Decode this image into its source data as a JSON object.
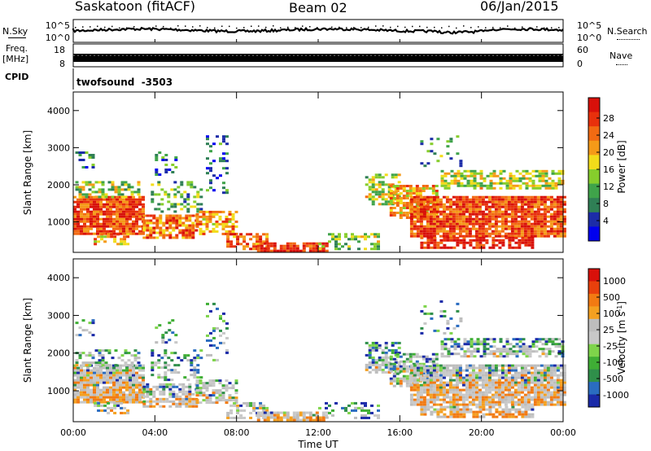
{
  "header": {
    "station": "Saskatoon (fitACF)",
    "beam": "Beam 02",
    "date": "06/Jan/2015"
  },
  "panels": {
    "nsky_label": "N.Sky",
    "nsearch_label": "N.Search",
    "freq_label_1": "Freq.",
    "freq_label_2": "[MHz]",
    "nave_label": "Nave",
    "cpid_label": "CPID",
    "cpid_value": "twofsound  -3503",
    "nsky_ticks": [
      "10^5",
      "10^0"
    ],
    "nsearch_ticks": [
      "10^5",
      "10^0"
    ],
    "freq_ticks": [
      "18",
      "8"
    ],
    "nave_ticks": [
      "60",
      "0"
    ]
  },
  "colors": {
    "power": [
      "#0000ee",
      "#1c2ca8",
      "#2f7f55",
      "#3fa34a",
      "#86cd2c",
      "#f2dc1a",
      "#f59a18",
      "#f26a12",
      "#e8300c",
      "#d8100a"
    ],
    "velocity": [
      "#1a2aa8",
      "#2a6cc0",
      "#2f8f4a",
      "#3fae35",
      "#7ed44a",
      "#c8c8c8",
      "#bdbdbd",
      "#f4a020",
      "#f27a12",
      "#e8400c",
      "#d8100a"
    ]
  },
  "chart_data": [
    {
      "type": "heatmap",
      "name": "power",
      "ylabel": "Slant Range [km]",
      "xlabel": "",
      "ylim": [
        180,
        4500
      ],
      "yticks": [
        1000,
        2000,
        3000,
        4000
      ],
      "xticks": [
        "00:00",
        "04:00",
        "08:00",
        "12:00",
        "16:00",
        "20:00",
        "00:00"
      ],
      "colorbar_label": "Power [dB]",
      "colorbar_ticks": [
        "28",
        "24",
        "20",
        "16",
        "12",
        "8",
        "4"
      ],
      "colorbar_range": [
        0,
        32
      ]
    },
    {
      "type": "heatmap",
      "name": "velocity",
      "ylabel": "Slant Range [km]",
      "xlabel": "Time UT",
      "ylim": [
        180,
        4500
      ],
      "yticks": [
        1000,
        2000,
        3000,
        4000
      ],
      "xticks": [
        "00:00",
        "04:00",
        "08:00",
        "12:00",
        "16:00",
        "20:00",
        "00:00"
      ],
      "colorbar_label": "Velocity [m s^-1]",
      "colorbar_ticks": [
        "1000",
        "500",
        "100",
        "25",
        "-25",
        "-100",
        "-500",
        "-1000"
      ]
    }
  ]
}
